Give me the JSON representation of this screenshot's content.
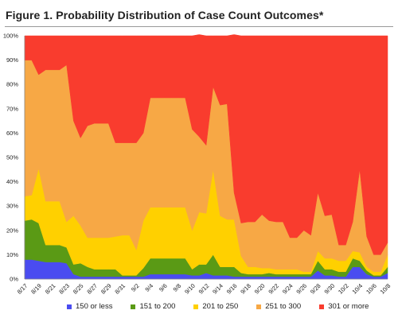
{
  "title": "Figure 1. Probability Distribution of Case Count Outcomes*",
  "chart_data": {
    "type": "area",
    "stacked": true,
    "title": "Figure 1. Probability Distribution of Case Count Outcomes*",
    "xlabel": "",
    "ylabel": "",
    "ylim": [
      0,
      100
    ],
    "ytick_labels": [
      "0%",
      "10%",
      "20%",
      "30%",
      "40%",
      "50%",
      "60%",
      "70%",
      "80%",
      "90%",
      "100%"
    ],
    "grid": false,
    "legend_position": "bottom",
    "x": [
      "8/17",
      "8/18",
      "8/19",
      "8/20",
      "8/21",
      "8/22",
      "8/23",
      "8/24",
      "8/25",
      "8/26",
      "8/27",
      "8/28",
      "8/29",
      "8/30",
      "8/31",
      "9/1",
      "9/2",
      "9/3",
      "9/4",
      "9/5",
      "9/6",
      "9/7",
      "9/8",
      "9/9",
      "9/10",
      "9/11",
      "9/12",
      "9/13",
      "9/14",
      "9/15",
      "9/16",
      "9/17",
      "9/18",
      "9/19",
      "9/20",
      "9/21",
      "9/22",
      "9/23",
      "9/24",
      "9/25",
      "9/26",
      "9/27",
      "9/28",
      "9/29",
      "9/30",
      "10/1",
      "10/2",
      "10/3",
      "10/4",
      "10/5",
      "10/6",
      "10/7",
      "10/8"
    ],
    "x_tick_labels": [
      "8/17",
      "8/19",
      "8/21",
      "8/23",
      "8/25",
      "8/27",
      "8/29",
      "8/31",
      "9/2",
      "9/4",
      "9/6",
      "9/8",
      "9/10",
      "9/12",
      "9/14",
      "9/16",
      "9/18",
      "9/20",
      "9/22",
      "9/24",
      "9/26",
      "9/28",
      "9/30",
      "10/2",
      "10/4",
      "10/6",
      "10/8"
    ],
    "series": [
      {
        "name": "150 or less",
        "color": "#4a4cf0",
        "values": [
          8,
          8,
          7.5,
          7,
          7,
          7,
          6.5,
          2,
          1,
          1,
          1,
          1,
          1,
          1,
          1,
          1,
          1,
          1,
          2,
          2,
          2,
          2,
          2,
          2,
          1.5,
          1.5,
          2.5,
          1.5,
          1.5,
          1.5,
          1,
          1,
          1,
          1,
          1,
          1,
          1,
          1,
          1,
          1,
          1,
          1,
          3.5,
          1.5,
          1.5,
          1,
          1,
          5,
          5,
          2,
          1,
          1,
          2.5
        ]
      },
      {
        "name": "151 to 200",
        "color": "#5a9a15",
        "values": [
          16,
          16.5,
          15.5,
          7,
          7,
          7,
          6.5,
          4,
          5.5,
          4,
          3,
          3,
          3,
          3,
          0.5,
          0.5,
          0.5,
          3.5,
          6.5,
          6.5,
          6.5,
          6.5,
          6.5,
          6.5,
          2.5,
          4.5,
          3.5,
          8.5,
          3.5,
          3.5,
          4,
          1.5,
          1,
          1,
          1,
          1.5,
          1,
          1,
          1,
          1,
          1,
          1,
          4,
          2.5,
          2.5,
          2,
          2,
          3.5,
          2.5,
          1.5,
          0.5,
          0.5,
          2.5
        ]
      },
      {
        "name": "201 to 250",
        "color": "#ffd000",
        "values": [
          10,
          10,
          22.5,
          18,
          18,
          18,
          10.5,
          20,
          15.5,
          12,
          13,
          13,
          13,
          13.5,
          16.5,
          16.5,
          10.5,
          19.5,
          21,
          21,
          21,
          21,
          21,
          21,
          16,
          21.5,
          21,
          35,
          21,
          19.5,
          19.5,
          7,
          3,
          3,
          2.5,
          2,
          2,
          2,
          2,
          2,
          1,
          1,
          4,
          4.5,
          4.5,
          4.5,
          4.5,
          3,
          3.5,
          1.5,
          1.5,
          1.5,
          5
        ]
      },
      {
        "name": "251 to 300",
        "color": "#f7a845",
        "values": [
          56,
          55.5,
          38.5,
          54,
          54,
          54,
          64.5,
          39,
          36,
          46,
          47,
          47,
          47,
          38.5,
          38,
          38,
          44,
          36,
          45,
          45,
          45,
          45,
          45,
          45,
          41.5,
          31,
          28,
          34,
          45.5,
          47.5,
          11,
          13.5,
          18.5,
          18.5,
          22,
          19.5,
          19.5,
          19.5,
          13,
          13,
          17,
          15,
          24,
          17.5,
          18,
          6.5,
          6.5,
          12,
          34,
          12.5,
          7,
          7,
          5
        ]
      },
      {
        "name": "301 or more",
        "color": "#f93c2e",
        "values": [
          10,
          10,
          16,
          14,
          14,
          14,
          12,
          35,
          42,
          37,
          36,
          36,
          36,
          44,
          44,
          44,
          44,
          40,
          25.5,
          25.5,
          25.5,
          25.5,
          25.5,
          25.5,
          38.5,
          42,
          45,
          21,
          28.5,
          28,
          65,
          77,
          76.5,
          76.5,
          73.5,
          76,
          76.5,
          76.5,
          83,
          83,
          80,
          82,
          64.5,
          74,
          73.5,
          86,
          86,
          76.5,
          55,
          82.5,
          90,
          90,
          85
        ]
      }
    ]
  }
}
